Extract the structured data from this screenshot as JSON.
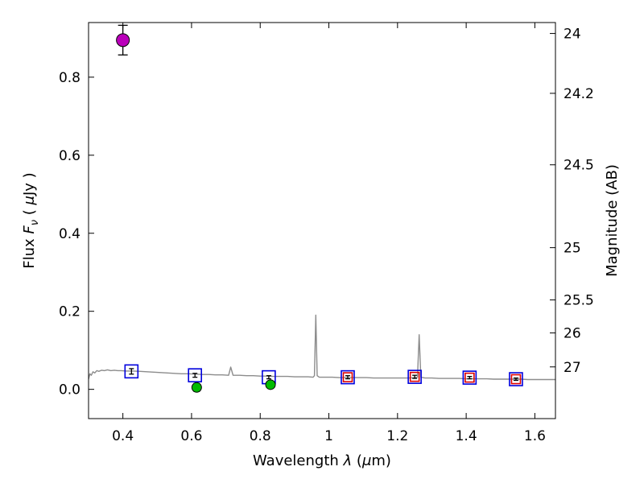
{
  "figure": {
    "background": "#ffffff",
    "axis_color": "#000000"
  },
  "chart_data": {
    "type": "line",
    "title": "",
    "xlabel": "Wavelength λ (μm)",
    "ylabel_left": "Flux F_ν ( μJy )",
    "ylabel_right": "Magnitude (AB)",
    "xlabel_parts": [
      {
        "t": "Wavelength  "
      },
      {
        "t": "λ",
        "i": 1
      },
      {
        "t": " ("
      },
      {
        "t": "μ",
        "i": 1
      },
      {
        "t": "m)"
      }
    ],
    "ylabel_left_parts": [
      {
        "t": "Flux  "
      },
      {
        "t": "F",
        "i": 1
      },
      {
        "t": "ν",
        "i": 1,
        "sub": 1
      },
      {
        "t": " ( "
      },
      {
        "t": "μ",
        "i": 1
      },
      {
        "t": "Jy )"
      }
    ],
    "ylabel_right_parts": [
      {
        "t": "Magnitude (AB)"
      }
    ],
    "xlim": [
      0.3,
      1.66
    ],
    "ylim": [
      -0.075,
      0.94
    ],
    "grid": false,
    "legend": null,
    "x_ticks": [
      {
        "v": 0.4,
        "label": "0.4"
      },
      {
        "v": 0.6,
        "label": "0.6"
      },
      {
        "v": 0.8,
        "label": "0.8"
      },
      {
        "v": 1.0,
        "label": "1"
      },
      {
        "v": 1.2,
        "label": "1.2"
      },
      {
        "v": 1.4,
        "label": "1.4"
      },
      {
        "v": 1.6,
        "label": "1.6"
      }
    ],
    "y_ticks_left": [
      {
        "v": 0.0,
        "label": "0.0"
      },
      {
        "v": 0.2,
        "label": "0.2"
      },
      {
        "v": 0.4,
        "label": "0.4"
      },
      {
        "v": 0.6,
        "label": "0.6"
      },
      {
        "v": 0.8,
        "label": "0.8"
      }
    ],
    "y_ticks_right": [
      {
        "label": "24",
        "flux": 0.912
      },
      {
        "label": "24.2",
        "flux": 0.7586
      },
      {
        "label": "24.5",
        "flux": 0.5754
      },
      {
        "label": "25",
        "flux": 0.3631
      },
      {
        "label": "25.5",
        "flux": 0.2291
      },
      {
        "label": "26",
        "flux": 0.1445
      },
      {
        "label": "27",
        "flux": 0.0575
      }
    ],
    "series": [
      {
        "name": "model-spectrum",
        "kind": "line",
        "color": "#8c8c8c",
        "line_width": 1.4,
        "points": [
          [
            0.3,
            0.026
          ],
          [
            0.304,
            0.04
          ],
          [
            0.308,
            0.036
          ],
          [
            0.313,
            0.045
          ],
          [
            0.318,
            0.042
          ],
          [
            0.324,
            0.048
          ],
          [
            0.33,
            0.046
          ],
          [
            0.338,
            0.049
          ],
          [
            0.346,
            0.048
          ],
          [
            0.355,
            0.05
          ],
          [
            0.365,
            0.048
          ],
          [
            0.375,
            0.049
          ],
          [
            0.385,
            0.048
          ],
          [
            0.395,
            0.048
          ],
          [
            0.41,
            0.047
          ],
          [
            0.43,
            0.047
          ],
          [
            0.45,
            0.046
          ],
          [
            0.47,
            0.045
          ],
          [
            0.49,
            0.044
          ],
          [
            0.51,
            0.043
          ],
          [
            0.53,
            0.042
          ],
          [
            0.55,
            0.041
          ],
          [
            0.57,
            0.04
          ],
          [
            0.59,
            0.04
          ],
          [
            0.61,
            0.039
          ],
          [
            0.63,
            0.038
          ],
          [
            0.65,
            0.038
          ],
          [
            0.67,
            0.037
          ],
          [
            0.69,
            0.037
          ],
          [
            0.708,
            0.036
          ],
          [
            0.714,
            0.057
          ],
          [
            0.721,
            0.036
          ],
          [
            0.74,
            0.036
          ],
          [
            0.76,
            0.035
          ],
          [
            0.78,
            0.035
          ],
          [
            0.8,
            0.034
          ],
          [
            0.82,
            0.034
          ],
          [
            0.84,
            0.033
          ],
          [
            0.86,
            0.033
          ],
          [
            0.88,
            0.033
          ],
          [
            0.9,
            0.032
          ],
          [
            0.92,
            0.032
          ],
          [
            0.94,
            0.032
          ],
          [
            0.954,
            0.031
          ],
          [
            0.958,
            0.035
          ],
          [
            0.962,
            0.19
          ],
          [
            0.966,
            0.035
          ],
          [
            0.972,
            0.031
          ],
          [
            0.99,
            0.031
          ],
          [
            1.01,
            0.031
          ],
          [
            1.03,
            0.03
          ],
          [
            1.05,
            0.03
          ],
          [
            1.07,
            0.03
          ],
          [
            1.09,
            0.03
          ],
          [
            1.11,
            0.03
          ],
          [
            1.13,
            0.029
          ],
          [
            1.15,
            0.029
          ],
          [
            1.17,
            0.029
          ],
          [
            1.19,
            0.029
          ],
          [
            1.21,
            0.029
          ],
          [
            1.23,
            0.029
          ],
          [
            1.25,
            0.03
          ],
          [
            1.258,
            0.031
          ],
          [
            1.263,
            0.14
          ],
          [
            1.268,
            0.031
          ],
          [
            1.28,
            0.029
          ],
          [
            1.3,
            0.029
          ],
          [
            1.32,
            0.028
          ],
          [
            1.34,
            0.028
          ],
          [
            1.36,
            0.028
          ],
          [
            1.38,
            0.028
          ],
          [
            1.4,
            0.027
          ],
          [
            1.42,
            0.027
          ],
          [
            1.44,
            0.027
          ],
          [
            1.46,
            0.027
          ],
          [
            1.48,
            0.026
          ],
          [
            1.5,
            0.026
          ],
          [
            1.52,
            0.026
          ],
          [
            1.54,
            0.026
          ],
          [
            1.56,
            0.026
          ],
          [
            1.58,
            0.025
          ],
          [
            1.6,
            0.025
          ],
          [
            1.62,
            0.025
          ],
          [
            1.64,
            0.025
          ],
          [
            1.66,
            0.025
          ]
        ]
      },
      {
        "name": "photometry-blue-squares",
        "kind": "scatter",
        "marker": "open-square",
        "color": "#0000dd",
        "marker_size": 16,
        "error_color": "#000000",
        "points": [
          {
            "x": 0.425,
            "y": 0.046,
            "yerr": 0.007
          },
          {
            "x": 0.61,
            "y": 0.036,
            "yerr": 0.005
          },
          {
            "x": 0.825,
            "y": 0.031,
            "yerr": 0.004
          },
          {
            "x": 1.055,
            "y": 0.031,
            "yerr": 0.004
          },
          {
            "x": 1.25,
            "y": 0.032,
            "yerr": 0.004
          },
          {
            "x": 1.41,
            "y": 0.03,
            "yerr": 0.003
          },
          {
            "x": 1.545,
            "y": 0.026,
            "yerr": 0.003
          }
        ]
      },
      {
        "name": "photometry-red-squares",
        "kind": "scatter",
        "marker": "open-square",
        "color": "#dd0000",
        "marker_size": 11,
        "points": [
          {
            "x": 1.055,
            "y": 0.031
          },
          {
            "x": 1.25,
            "y": 0.032
          },
          {
            "x": 1.41,
            "y": 0.03
          },
          {
            "x": 1.545,
            "y": 0.026
          }
        ]
      },
      {
        "name": "photometry-green-circles",
        "kind": "scatter",
        "marker": "filled-circle",
        "color": "#00bb00",
        "marker_size": 6,
        "error_color": "#000000",
        "points": [
          {
            "x": 0.615,
            "y": 0.005,
            "yerr": 0.01
          },
          {
            "x": 0.83,
            "y": 0.012,
            "yerr": 0.007
          }
        ]
      },
      {
        "name": "photometry-magenta-circle",
        "kind": "scatter",
        "marker": "filled-circle",
        "color": "#bb00bb",
        "marker_size": 8,
        "error_color": "#000000",
        "points": [
          {
            "x": 0.4,
            "y": 0.895,
            "yerr": 0.038
          }
        ]
      }
    ]
  }
}
